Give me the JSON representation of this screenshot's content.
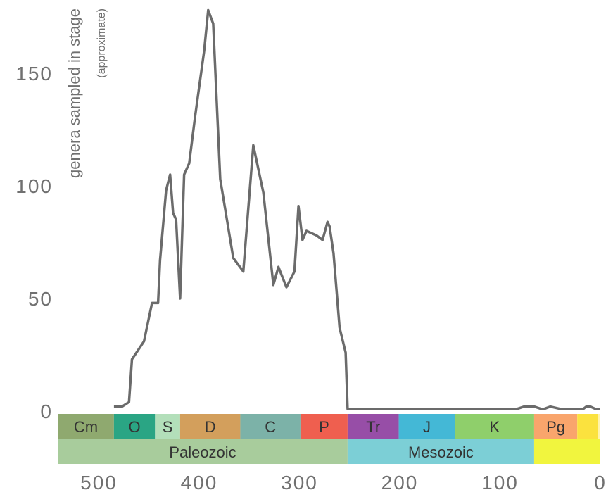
{
  "chart_data": {
    "type": "line",
    "ylabel": "genera sampled in stage",
    "ylabel_note": "(approximate)",
    "x_reversed": true,
    "xlim": [
      540,
      0
    ],
    "ylim": [
      0,
      180
    ],
    "x_ticks": [
      500,
      400,
      300,
      200,
      100,
      0
    ],
    "y_ticks": [
      0,
      50,
      100,
      150
    ],
    "grid": false,
    "line_color": "#6b6b6b",
    "series": [
      {
        "x": [
          485,
          477,
          470,
          467,
          455,
          447,
          441,
          439,
          433,
          429,
          426,
          423,
          419,
          415,
          410,
          404,
          395,
          391,
          386,
          379,
          366,
          356,
          346,
          336,
          326,
          321,
          313,
          305,
          301,
          297,
          293,
          288,
          283,
          277,
          272,
          270,
          266,
          260,
          254,
          252,
          240,
          200,
          150,
          83,
          76,
          70,
          66,
          59,
          56,
          50,
          40,
          30,
          17,
          14,
          10,
          5,
          0
        ],
        "y": [
          2,
          2,
          4,
          23,
          31,
          48,
          48,
          67,
          98,
          105,
          88,
          85,
          50,
          105,
          110,
          131,
          160,
          178,
          172,
          103,
          68,
          62,
          118,
          97,
          56,
          64,
          55,
          62,
          91,
          76,
          80,
          79,
          78,
          76,
          84,
          82,
          70,
          37,
          26,
          1,
          1,
          1,
          1,
          1,
          2,
          2,
          2,
          1,
          1,
          2,
          1,
          1,
          1,
          2,
          2,
          1,
          1
        ]
      }
    ],
    "periods": [
      {
        "label": "Cm",
        "start": 541,
        "end": 485,
        "color": "#8fa96f"
      },
      {
        "label": "O",
        "start": 485,
        "end": 444,
        "color": "#2aa584"
      },
      {
        "label": "S",
        "start": 444,
        "end": 419,
        "color": "#b3dfba"
      },
      {
        "label": "D",
        "start": 419,
        "end": 359,
        "color": "#d39f5c"
      },
      {
        "label": "C",
        "start": 359,
        "end": 299,
        "color": "#7cb2a8"
      },
      {
        "label": "P",
        "start": 299,
        "end": 252,
        "color": "#ef5f4f"
      },
      {
        "label": "Tr",
        "start": 252,
        "end": 201,
        "color": "#974ea7"
      },
      {
        "label": "J",
        "start": 201,
        "end": 145,
        "color": "#44b8d6"
      },
      {
        "label": "K",
        "start": 145,
        "end": 66,
        "color": "#8fcf6b"
      },
      {
        "label": "Pg",
        "start": 66,
        "end": 23,
        "color": "#f9a56c"
      },
      {
        "label": "",
        "start": 23,
        "end": 2.6,
        "color": "#fbe23e"
      },
      {
        "label": "",
        "start": 2.6,
        "end": 0,
        "color": "#fff4ad"
      }
    ],
    "eras": [
      {
        "label": "Paleozoic",
        "start": 541,
        "end": 252,
        "color": "#a8cc9c"
      },
      {
        "label": "Mesozoic",
        "start": 252,
        "end": 66,
        "color": "#7ccfd6"
      },
      {
        "label": "",
        "start": 66,
        "end": 0,
        "color": "#f1f53e"
      }
    ]
  }
}
